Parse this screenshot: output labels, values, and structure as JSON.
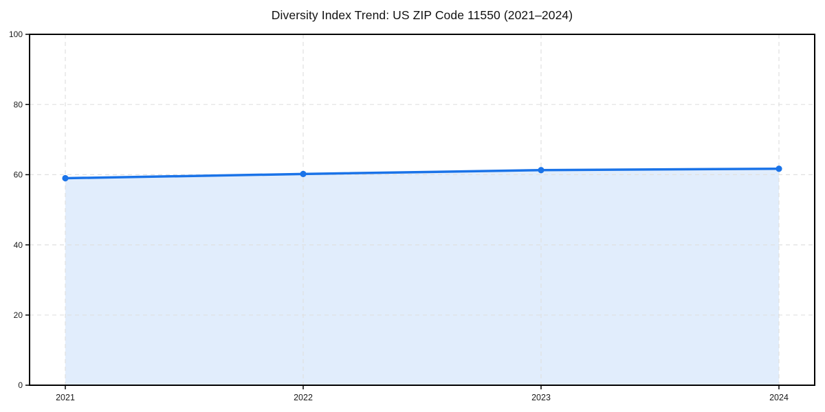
{
  "chart_data": {
    "type": "line",
    "title": "Diversity Index Trend: US ZIP Code 11550 (2021–2024)",
    "x_labels": [
      "2021",
      "2022",
      "2023",
      "2024"
    ],
    "series": [
      {
        "name": "Diversity Index",
        "values": [
          59.0,
          60.2,
          61.3,
          61.7
        ]
      }
    ],
    "xlabel": "",
    "ylabel": "",
    "ylim": [
      0,
      100
    ],
    "yticks": [
      0,
      20,
      40,
      60,
      80,
      100
    ],
    "grid": true,
    "grid_style": "dashed",
    "legend": "none",
    "area_fill": true,
    "marker": "circle",
    "colors": {
      "line": "#1a73e8",
      "fill": "rgba(26,115,232,0.13)",
      "grid": "#e0e0e0",
      "axis": "#000000",
      "tick_label": "#1a1a1a",
      "title": "#111111",
      "background": "#ffffff"
    }
  }
}
